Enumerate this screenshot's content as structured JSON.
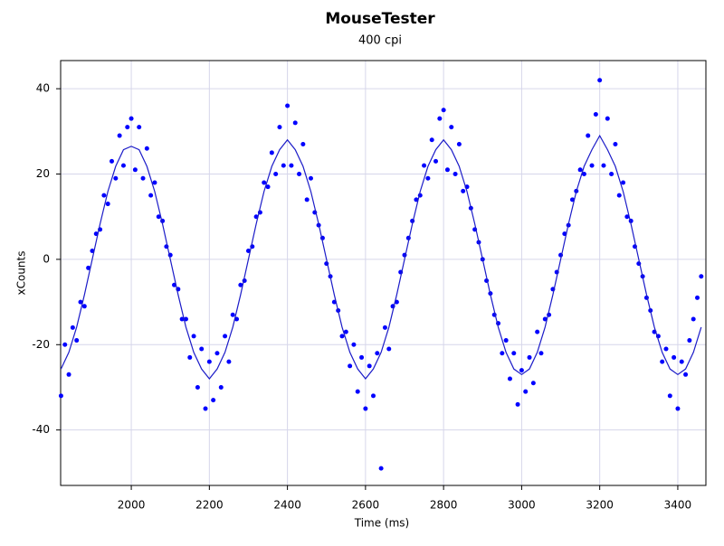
{
  "chart_data": {
    "type": "scatter",
    "title": "MouseTester",
    "subtitle": "400 cpi",
    "x_label": "Time (ms)",
    "y_label": "xCounts",
    "xlim": [
      1819,
      3472
    ],
    "ylim": [
      -53,
      46.6
    ],
    "xticks": [
      2000,
      2200,
      2400,
      2600,
      2800,
      3000,
      3200,
      3400
    ],
    "yticks": [
      -40,
      -20,
      0,
      20,
      40
    ],
    "grid": true,
    "series": [
      {
        "type": "scatter",
        "color": "#0000ff",
        "x": [
          1820,
          1830,
          1840,
          1850,
          1860,
          1870,
          1880,
          1890,
          1900,
          1910,
          1920,
          1930,
          1940,
          1950,
          1960,
          1970,
          1980,
          1990,
          2000,
          2010,
          2020,
          2030,
          2040,
          2050,
          2060,
          2070,
          2080,
          2090,
          2100,
          2110,
          2120,
          2130,
          2140,
          2150,
          2160,
          2170,
          2180,
          2190,
          2200,
          2210,
          2220,
          2230,
          2240,
          2250,
          2260,
          2270,
          2280,
          2290,
          2300,
          2310,
          2320,
          2330,
          2340,
          2350,
          2360,
          2370,
          2380,
          2390,
          2400,
          2410,
          2420,
          2430,
          2440,
          2450,
          2460,
          2470,
          2480,
          2490,
          2500,
          2510,
          2520,
          2530,
          2540,
          2550,
          2560,
          2570,
          2580,
          2590,
          2600,
          2610,
          2620,
          2630,
          2640,
          2650,
          2660,
          2670,
          2680,
          2690,
          2700,
          2710,
          2720,
          2730,
          2740,
          2750,
          2760,
          2770,
          2780,
          2790,
          2800,
          2810,
          2820,
          2830,
          2840,
          2850,
          2860,
          2870,
          2880,
          2890,
          2900,
          2910,
          2920,
          2930,
          2940,
          2950,
          2960,
          2970,
          2980,
          2990,
          3000,
          3010,
          3020,
          3030,
          3040,
          3050,
          3060,
          3070,
          3080,
          3090,
          3100,
          3110,
          3120,
          3130,
          3140,
          3150,
          3160,
          3170,
          3180,
          3190,
          3200,
          3210,
          3220,
          3230,
          3240,
          3250,
          3260,
          3270,
          3280,
          3290,
          3300,
          3310,
          3320,
          3330,
          3340,
          3350,
          3360,
          3370,
          3380,
          3390,
          3400,
          3410,
          3420,
          3430,
          3440,
          3450,
          3460
        ],
        "values": [
          -32,
          -20,
          -27,
          -16,
          -19,
          -10,
          -11,
          -2,
          2,
          6,
          7,
          15,
          13,
          23,
          19,
          29,
          22,
          31,
          33,
          21,
          31,
          19,
          26,
          15,
          18,
          10,
          9,
          3,
          1,
          -6,
          -7,
          -14,
          -14,
          -23,
          -18,
          -30,
          -21,
          -35,
          -24,
          -33,
          -22,
          -30,
          -18,
          -24,
          -13,
          -14,
          -6,
          -5,
          2,
          3,
          10,
          11,
          18,
          17,
          25,
          20,
          31,
          22,
          36,
          22,
          32,
          20,
          27,
          14,
          19,
          11,
          8,
          5,
          -1,
          -4,
          -10,
          -12,
          -18,
          -17,
          -25,
          -20,
          -31,
          -23,
          -35,
          -25,
          -32,
          -22,
          -49,
          -16,
          -21,
          -11,
          -10,
          -3,
          1,
          5,
          9,
          14,
          15,
          22,
          19,
          28,
          23,
          33,
          35,
          21,
          31,
          20,
          27,
          16,
          17,
          12,
          7,
          4,
          0,
          -5,
          -8,
          -13,
          -15,
          -22,
          -19,
          -28,
          -22,
          -34,
          -26,
          -31,
          -23,
          -29,
          -17,
          -22,
          -14,
          -13,
          -7,
          -3,
          1,
          6,
          8,
          14,
          16,
          21,
          20,
          29,
          22,
          34,
          42,
          22,
          33,
          20,
          27,
          15,
          18,
          10,
          9,
          3,
          -1,
          -4,
          -9,
          -12,
          -17,
          -18,
          -24,
          -21,
          -32,
          -23,
          -35,
          -24,
          -27,
          -19,
          -14,
          -9,
          -4
        ]
      },
      {
        "type": "line",
        "color": "#1c1cc8",
        "x": [
          1820,
          1840,
          1860,
          1880,
          1900,
          1920,
          1940,
          1960,
          1980,
          2000,
          2020,
          2040,
          2060,
          2080,
          2100,
          2120,
          2140,
          2160,
          2180,
          2200,
          2220,
          2240,
          2260,
          2280,
          2300,
          2320,
          2340,
          2360,
          2380,
          2400,
          2420,
          2440,
          2460,
          2480,
          2500,
          2520,
          2540,
          2560,
          2580,
          2600,
          2620,
          2640,
          2660,
          2680,
          2700,
          2720,
          2740,
          2760,
          2780,
          2800,
          2820,
          2840,
          2860,
          2880,
          2900,
          2920,
          2940,
          2960,
          2980,
          3000,
          3020,
          3040,
          3060,
          3080,
          3100,
          3120,
          3140,
          3160,
          3180,
          3200,
          3220,
          3240,
          3260,
          3280,
          3300,
          3320,
          3340,
          3360,
          3380,
          3400,
          3420,
          3440,
          3460
        ],
        "values": [
          -25.7,
          -21.8,
          -15.9,
          -8.3,
          0,
          8.3,
          15.9,
          21.8,
          25.7,
          26.5,
          25.7,
          21.8,
          15.9,
          8.3,
          0,
          -8.3,
          -15.9,
          -21.8,
          -25.7,
          -28,
          -25.7,
          -21.8,
          -15.9,
          -8.3,
          0,
          8.3,
          15.9,
          21.8,
          25.7,
          28,
          25.7,
          21.8,
          15.9,
          8.3,
          0,
          -8.3,
          -15.9,
          -21.8,
          -25.7,
          -28,
          -25.7,
          -21.8,
          -15.9,
          -8.3,
          0,
          8.3,
          15.9,
          21.8,
          25.7,
          28,
          25.7,
          21.8,
          15.9,
          8.3,
          0,
          -8.3,
          -15.9,
          -21.8,
          -25.7,
          -27,
          -25.7,
          -21.8,
          -15.9,
          -8.3,
          0,
          8.3,
          15.9,
          21.8,
          25.7,
          29,
          25.7,
          21.8,
          15.9,
          8.3,
          0,
          -8.3,
          -15.9,
          -21.8,
          -25.7,
          -27,
          -25.7,
          -21.8,
          -15.9
        ]
      }
    ]
  }
}
